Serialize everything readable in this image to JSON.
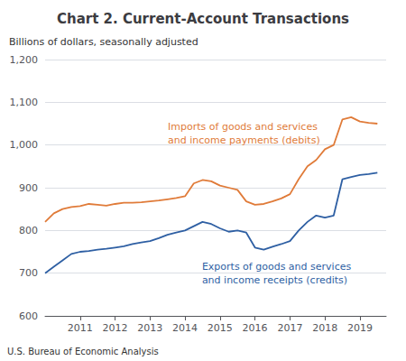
{
  "chart_data": {
    "type": "line",
    "title": "Chart 2. Current-Account Transactions",
    "ylabel": "Billions of dollars, seasonally adjusted",
    "footnote": "U.S. Bureau of Economic Analysis",
    "x": [
      2010.0,
      2010.25,
      2010.5,
      2010.75,
      2011.0,
      2011.25,
      2011.5,
      2011.75,
      2012.0,
      2012.25,
      2012.5,
      2012.75,
      2013.0,
      2013.25,
      2013.5,
      2013.75,
      2014.0,
      2014.25,
      2014.5,
      2014.75,
      2015.0,
      2015.25,
      2015.5,
      2015.75,
      2016.0,
      2016.25,
      2016.5,
      2016.75,
      2017.0,
      2017.25,
      2017.5,
      2017.75,
      2018.0,
      2018.25,
      2018.5,
      2018.75,
      2019.0,
      2019.25,
      2019.5
    ],
    "series": [
      {
        "name": "Exports of goods and services\nand income receipts (credits)",
        "color": "#2e5fa3",
        "values": [
          700,
          715,
          730,
          745,
          750,
          752,
          755,
          757,
          760,
          763,
          768,
          772,
          775,
          782,
          790,
          795,
          800,
          810,
          820,
          815,
          805,
          797,
          800,
          795,
          760,
          755,
          762,
          768,
          775,
          800,
          820,
          835,
          830,
          835,
          920,
          925,
          930,
          932,
          935
        ]
      },
      {
        "name": "Imports of goods and services\nand income payments (debits)",
        "color": "#e07b39",
        "values": [
          820,
          840,
          850,
          855,
          857,
          862,
          860,
          858,
          862,
          865,
          865,
          866,
          868,
          870,
          873,
          876,
          880,
          910,
          918,
          915,
          905,
          900,
          895,
          868,
          860,
          862,
          868,
          875,
          885,
          920,
          950,
          965,
          990,
          1000,
          1060,
          1065,
          1055,
          1052,
          1050
        ]
      }
    ],
    "xlim": [
      2010.0,
      2019.75
    ],
    "xticks": [
      2011,
      2012,
      2013,
      2014,
      2015,
      2016,
      2017,
      2018,
      2019
    ],
    "ylim": [
      600,
      1200
    ],
    "yticks": [
      600,
      700,
      800,
      900,
      {
        "value": 1000,
        "label": "1,000"
      },
      {
        "value": 1100,
        "label": "1,100"
      },
      {
        "value": 1200,
        "label": "1,200"
      }
    ],
    "grid": true
  }
}
